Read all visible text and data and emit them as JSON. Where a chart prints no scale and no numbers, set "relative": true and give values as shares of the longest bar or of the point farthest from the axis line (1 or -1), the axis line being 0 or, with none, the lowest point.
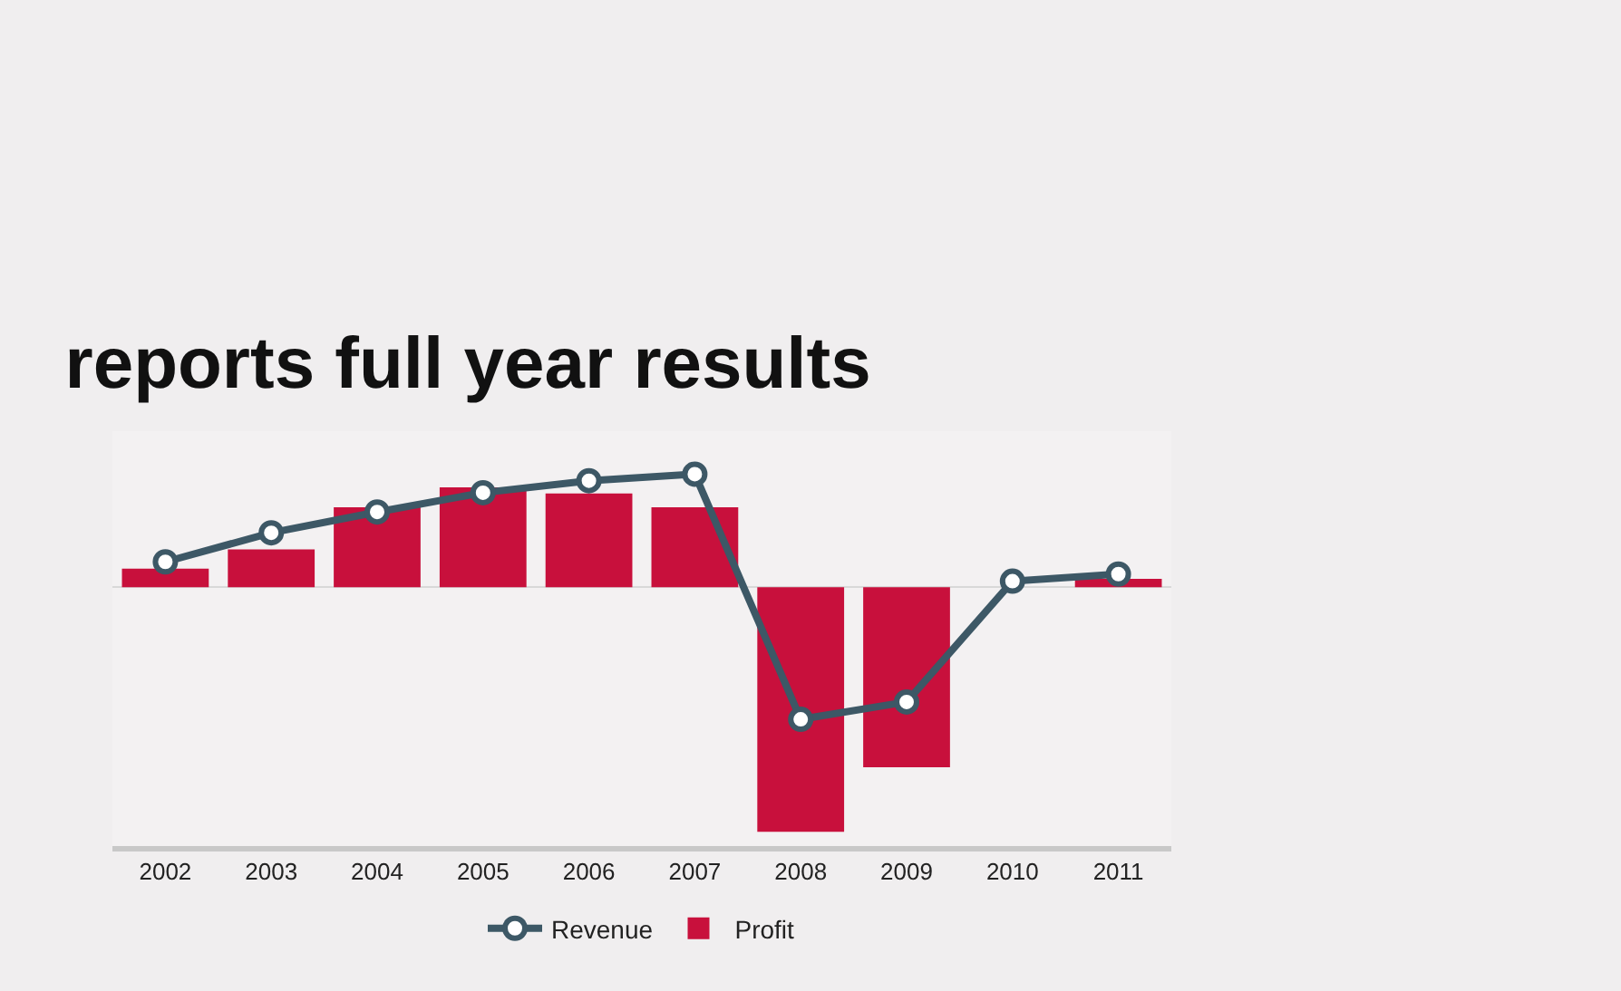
{
  "chart_data": {
    "type": "bar",
    "title": "reports full year results",
    "relative": true,
    "categories": [
      "2002",
      "2003",
      "2004",
      "2005",
      "2006",
      "2007",
      "2008",
      "2009",
      "2010",
      "2011"
    ],
    "series": [
      {
        "name": "Revenue",
        "type": "line",
        "color": "#3d5866",
        "marker": "circle",
        "values": [
          0.104,
          0.223,
          0.308,
          0.387,
          0.436,
          0.463,
          -0.54,
          -0.469,
          0.025,
          0.054
        ]
      },
      {
        "name": "Profit",
        "color": "#c8103c",
        "values": [
          0.076,
          0.155,
          0.327,
          0.409,
          0.384,
          0.327,
          -1,
          -0.736,
          0,
          0.035
        ]
      }
    ],
    "legend": "bottom"
  }
}
